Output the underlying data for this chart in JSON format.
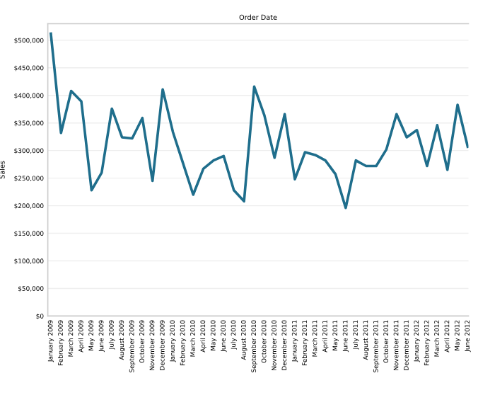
{
  "chart_data": {
    "type": "line",
    "title": "Order Date",
    "ylabel": "Sales",
    "categories": [
      "January 2009",
      "February 2009",
      "March 2009",
      "April 2009",
      "May 2009",
      "June 2009",
      "July 2009",
      "August 2009",
      "September 2009",
      "October 2009",
      "November 2009",
      "December 2009",
      "January 2010",
      "February 2010",
      "March 2010",
      "April 2010",
      "May 2010",
      "June 2010",
      "July 2010",
      "August 2010",
      "September 2010",
      "October 2010",
      "November 2010",
      "December 2010",
      "January 2011",
      "February 2011",
      "March 2011",
      "April 2011",
      "May 2011",
      "June 2011",
      "July 2011",
      "August 2011",
      "September 2011",
      "October 2011",
      "November 2011",
      "December 2011",
      "January 2012",
      "February 2012",
      "March 2012",
      "April 2012",
      "May 2012",
      "June 2012"
    ],
    "series": [
      {
        "color": "#1f6e8c",
        "values": [
          512000,
          332000,
          408000,
          389000,
          228000,
          260000,
          376000,
          324000,
          322000,
          359000,
          245000,
          411000,
          334000,
          277000,
          220000,
          267000,
          282000,
          290000,
          228000,
          208000,
          416000,
          364000,
          287000,
          366000,
          248000,
          297000,
          292000,
          282000,
          257000,
          196000,
          282000,
          272000,
          272000,
          302000,
          366000,
          324000,
          337000,
          272000,
          346000,
          265000,
          383000,
          307000
        ]
      }
    ],
    "ylim": [
      0,
      530000
    ],
    "yticks": [
      {
        "value": 0,
        "label": "$0"
      },
      {
        "value": 50000,
        "label": "$50,000"
      },
      {
        "value": 100000,
        "label": "$100,000"
      },
      {
        "value": 150000,
        "label": "$150,000"
      },
      {
        "value": 200000,
        "label": "$200,000"
      },
      {
        "value": 250000,
        "label": "$250,000"
      },
      {
        "value": 300000,
        "label": "$300,000"
      },
      {
        "value": 350000,
        "label": "$350,000"
      },
      {
        "value": 400000,
        "label": "$400,000"
      },
      {
        "value": 450000,
        "label": "$450,000"
      },
      {
        "value": 500000,
        "label": "$500,000"
      }
    ],
    "grid": "y",
    "legend": false
  }
}
